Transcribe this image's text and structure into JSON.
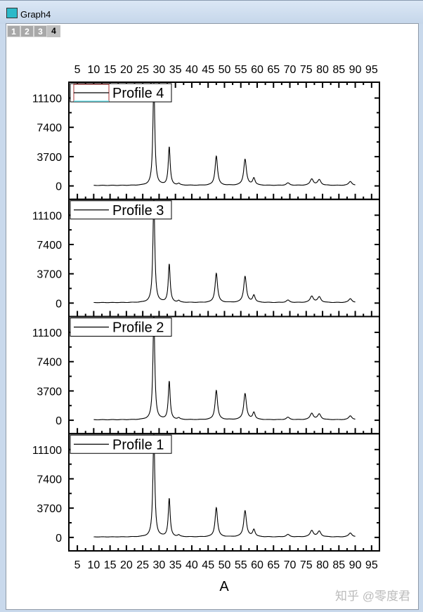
{
  "window": {
    "title": "Graph4",
    "icon": "graph-window-icon"
  },
  "layer_tabs": [
    {
      "label": "1"
    },
    {
      "label": "2"
    },
    {
      "label": "3"
    },
    {
      "label": "4",
      "active": true
    }
  ],
  "watermark": "知乎 @零度君",
  "chart_data": {
    "type": "line",
    "xlabel": "A",
    "xlim": [
      2.4,
      97.4
    ],
    "xticks": [
      "5",
      "10",
      "15",
      "20",
      "25",
      "30",
      "35",
      "40",
      "45",
      "50",
      "55",
      "60",
      "65",
      "70",
      "75",
      "80",
      "85",
      "90",
      "95"
    ],
    "yticks": [
      "0",
      "3700",
      "7400",
      "11100"
    ],
    "ylim": [
      -1700,
      13100
    ],
    "grid": false,
    "legend_placement": "top-left",
    "x_range_of_data": [
      10,
      90
    ],
    "peaks": [
      {
        "x": 28.4,
        "height": 13000,
        "width": 0.35
      },
      {
        "x": 33.1,
        "height": 4800,
        "width": 0.35
      },
      {
        "x": 36.0,
        "height": 200,
        "width": 0.4
      },
      {
        "x": 47.5,
        "height": 3700,
        "width": 0.45
      },
      {
        "x": 56.3,
        "height": 3300,
        "width": 0.5
      },
      {
        "x": 59.0,
        "height": 900,
        "width": 0.45
      },
      {
        "x": 69.4,
        "height": 300,
        "width": 0.6
      },
      {
        "x": 76.7,
        "height": 800,
        "width": 0.6
      },
      {
        "x": 79.0,
        "height": 700,
        "width": 0.6
      },
      {
        "x": 88.5,
        "height": 500,
        "width": 0.6
      }
    ],
    "series": [
      {
        "name": "Profile 4"
      },
      {
        "name": "Profile 3"
      },
      {
        "name": "Profile 2"
      },
      {
        "name": "Profile 1"
      }
    ]
  }
}
